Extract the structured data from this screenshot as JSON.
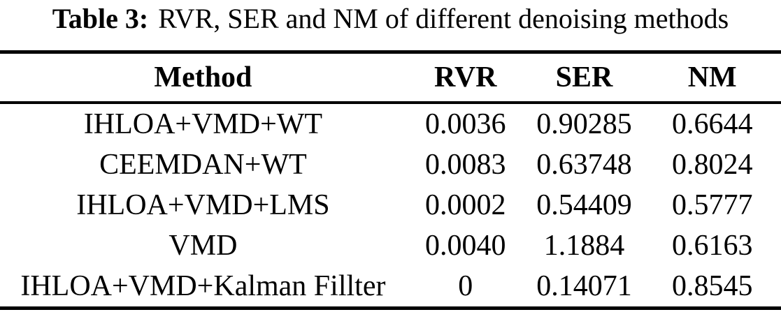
{
  "caption": {
    "label": "Table 3:",
    "text": "RVR, SER and NM of different denoising methods"
  },
  "table": {
    "headers": {
      "method": "Method",
      "rvr": "RVR",
      "ser": "SER",
      "nm": "NM"
    },
    "rows": [
      {
        "method": "IHLOA+VMD+WT",
        "rvr": "0.0036",
        "ser": "0.90285",
        "nm": "0.6644"
      },
      {
        "method": "CEEMDAN+WT",
        "rvr": "0.0083",
        "ser": "0.63748",
        "nm": "0.8024"
      },
      {
        "method": "IHLOA+VMD+LMS",
        "rvr": "0.0002",
        "ser": "0.54409",
        "nm": "0.5777"
      },
      {
        "method": "VMD",
        "rvr": "0.0040",
        "ser": "1.1884",
        "nm": "0.6163"
      },
      {
        "method": "IHLOA+VMD+Kalman Fillter",
        "rvr": "0",
        "ser": "0.14071",
        "nm": "0.8545"
      }
    ]
  },
  "colors": {
    "text": "#000000",
    "background": "#ffffff",
    "rule": "#000000"
  }
}
